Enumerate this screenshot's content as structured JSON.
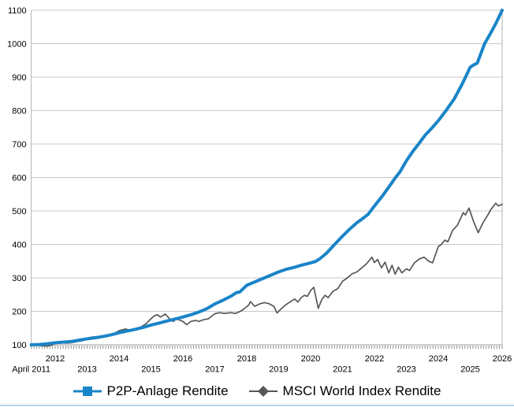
{
  "chart_data": {
    "type": "line",
    "title": "",
    "xlabel": "",
    "ylabel": "",
    "legend_position": "bottom",
    "grid": "horizontal-only",
    "background_color": "#ffffff",
    "grid_color": "#c9c9c9",
    "axis_line_color": "#b3b3b3",
    "baseline_color": "#9f9f9f",
    "tick_color": "#8f8f8f",
    "axis_text_color": "#000000",
    "bottom_edge_color": "#b9d3e8",
    "x_range": [
      2011.25,
      2026
    ],
    "y_axis": {
      "min": 100,
      "max": 1100,
      "step": 100,
      "tick_labels": [
        "100",
        "200",
        "300",
        "400",
        "500",
        "600",
        "700",
        "800",
        "900",
        "1000",
        "1100"
      ]
    },
    "x_axis": {
      "minor_ticks": "monthly",
      "ticks": [
        {
          "label": "April 2011",
          "x": 2011.25,
          "row": 2
        },
        {
          "label": "2012",
          "x": 2012,
          "row": 1
        },
        {
          "label": "2013",
          "x": 2013,
          "row": 2
        },
        {
          "label": "2014",
          "x": 2014,
          "row": 1
        },
        {
          "label": "2015",
          "x": 2015,
          "row": 2
        },
        {
          "label": "2016",
          "x": 2016,
          "row": 1
        },
        {
          "label": "2017",
          "x": 2017,
          "row": 2
        },
        {
          "label": "2018",
          "x": 2018,
          "row": 1
        },
        {
          "label": "2019",
          "x": 2019,
          "row": 2
        },
        {
          "label": "2020",
          "x": 2020,
          "row": 1
        },
        {
          "label": "2021",
          "x": 2021,
          "row": 2
        },
        {
          "label": "2022",
          "x": 2022,
          "row": 1
        },
        {
          "label": "2023",
          "x": 2023,
          "row": 2
        },
        {
          "label": "2024",
          "x": 2024,
          "row": 1
        },
        {
          "label": "2025",
          "x": 2025,
          "row": 2
        },
        {
          "label": "2026",
          "x": 2026,
          "row": 1
        }
      ]
    },
    "series": [
      {
        "name": "P2P-Anlage Rendite",
        "color": "#1a84c8",
        "line_width": 4,
        "marker": "square",
        "points": [
          [
            2011.25,
            100
          ],
          [
            2011.5,
            101
          ],
          [
            2011.75,
            103
          ],
          [
            2012.0,
            106
          ],
          [
            2012.25,
            108
          ],
          [
            2012.5,
            110
          ],
          [
            2012.75,
            114
          ],
          [
            2013.0,
            118
          ],
          [
            2013.25,
            121
          ],
          [
            2013.5,
            125
          ],
          [
            2013.75,
            130
          ],
          [
            2014.0,
            136
          ],
          [
            2014.25,
            141
          ],
          [
            2014.5,
            146
          ],
          [
            2014.75,
            152
          ],
          [
            2015.0,
            159
          ],
          [
            2015.25,
            165
          ],
          [
            2015.5,
            171
          ],
          [
            2015.75,
            177
          ],
          [
            2016.0,
            183
          ],
          [
            2016.25,
            190
          ],
          [
            2016.5,
            198
          ],
          [
            2016.75,
            208
          ],
          [
            2017.0,
            222
          ],
          [
            2017.25,
            233
          ],
          [
            2017.5,
            245
          ],
          [
            2017.68,
            256
          ],
          [
            2017.78,
            258
          ],
          [
            2018.0,
            278
          ],
          [
            2018.25,
            288
          ],
          [
            2018.5,
            298
          ],
          [
            2018.75,
            308
          ],
          [
            2019.0,
            318
          ],
          [
            2019.25,
            326
          ],
          [
            2019.5,
            332
          ],
          [
            2019.75,
            339
          ],
          [
            2020.0,
            345
          ],
          [
            2020.15,
            349
          ],
          [
            2020.3,
            358
          ],
          [
            2020.5,
            374
          ],
          [
            2020.75,
            400
          ],
          [
            2021.0,
            425
          ],
          [
            2021.25,
            448
          ],
          [
            2021.45,
            465
          ],
          [
            2021.6,
            475
          ],
          [
            2021.8,
            490
          ],
          [
            2022.0,
            515
          ],
          [
            2022.25,
            545
          ],
          [
            2022.5,
            578
          ],
          [
            2022.66,
            600
          ],
          [
            2022.8,
            617
          ],
          [
            2023.0,
            650
          ],
          [
            2023.2,
            678
          ],
          [
            2023.38,
            700
          ],
          [
            2023.6,
            728
          ],
          [
            2023.8,
            748
          ],
          [
            2024.0,
            770
          ],
          [
            2024.24,
            800
          ],
          [
            2024.5,
            835
          ],
          [
            2024.75,
            880
          ],
          [
            2025.0,
            930
          ],
          [
            2025.1,
            936
          ],
          [
            2025.22,
            942
          ],
          [
            2025.45,
            1000
          ],
          [
            2025.6,
            1025
          ],
          [
            2025.8,
            1060
          ],
          [
            2026.0,
            1100
          ]
        ]
      },
      {
        "name": "MSCI World Index Rendite",
        "color": "#575757",
        "line_width": 1.7,
        "marker": "diamond",
        "points": [
          [
            2011.25,
            100
          ],
          [
            2011.4,
            99
          ],
          [
            2011.58,
            97
          ],
          [
            2011.75,
            96
          ],
          [
            2011.9,
            99
          ],
          [
            2012.0,
            104
          ],
          [
            2012.15,
            107
          ],
          [
            2012.35,
            105
          ],
          [
            2012.5,
            106
          ],
          [
            2012.7,
            110
          ],
          [
            2012.85,
            112
          ],
          [
            2013.0,
            120
          ],
          [
            2013.2,
            124
          ],
          [
            2013.4,
            122
          ],
          [
            2013.6,
            126
          ],
          [
            2013.8,
            131
          ],
          [
            2014.0,
            142
          ],
          [
            2014.2,
            147
          ],
          [
            2014.35,
            144
          ],
          [
            2014.5,
            148
          ],
          [
            2014.7,
            154
          ],
          [
            2014.85,
            163
          ],
          [
            2015.0,
            178
          ],
          [
            2015.1,
            186
          ],
          [
            2015.2,
            190
          ],
          [
            2015.3,
            183
          ],
          [
            2015.45,
            192
          ],
          [
            2015.6,
            176
          ],
          [
            2015.7,
            170
          ],
          [
            2015.8,
            178
          ],
          [
            2015.9,
            174
          ],
          [
            2016.0,
            170
          ],
          [
            2016.12,
            160
          ],
          [
            2016.25,
            170
          ],
          [
            2016.4,
            173
          ],
          [
            2016.5,
            170
          ],
          [
            2016.65,
            175
          ],
          [
            2016.8,
            178
          ],
          [
            2017.0,
            193
          ],
          [
            2017.15,
            196
          ],
          [
            2017.3,
            194
          ],
          [
            2017.5,
            196
          ],
          [
            2017.65,
            194
          ],
          [
            2017.8,
            200
          ],
          [
            2017.9,
            206
          ],
          [
            2018.05,
            218
          ],
          [
            2018.12,
            229
          ],
          [
            2018.25,
            215
          ],
          [
            2018.4,
            222
          ],
          [
            2018.55,
            226
          ],
          [
            2018.7,
            223
          ],
          [
            2018.85,
            215
          ],
          [
            2018.95,
            195
          ],
          [
            2019.05,
            205
          ],
          [
            2019.2,
            218
          ],
          [
            2019.35,
            228
          ],
          [
            2019.5,
            237
          ],
          [
            2019.6,
            228
          ],
          [
            2019.7,
            240
          ],
          [
            2019.8,
            248
          ],
          [
            2019.9,
            245
          ],
          [
            2020.0,
            262
          ],
          [
            2020.1,
            272
          ],
          [
            2020.17,
            240
          ],
          [
            2020.24,
            209
          ],
          [
            2020.35,
            235
          ],
          [
            2020.45,
            248
          ],
          [
            2020.55,
            241
          ],
          [
            2020.7,
            260
          ],
          [
            2020.85,
            268
          ],
          [
            2021.0,
            290
          ],
          [
            2021.15,
            300
          ],
          [
            2021.3,
            312
          ],
          [
            2021.45,
            318
          ],
          [
            2021.6,
            330
          ],
          [
            2021.75,
            342
          ],
          [
            2021.92,
            362
          ],
          [
            2022.0,
            346
          ],
          [
            2022.1,
            355
          ],
          [
            2022.22,
            330
          ],
          [
            2022.33,
            347
          ],
          [
            2022.45,
            315
          ],
          [
            2022.55,
            338
          ],
          [
            2022.65,
            311
          ],
          [
            2022.75,
            332
          ],
          [
            2022.86,
            315
          ],
          [
            2023.0,
            327
          ],
          [
            2023.1,
            322
          ],
          [
            2023.25,
            345
          ],
          [
            2023.4,
            356
          ],
          [
            2023.55,
            362
          ],
          [
            2023.7,
            350
          ],
          [
            2023.82,
            345
          ],
          [
            2024.0,
            394
          ],
          [
            2024.1,
            400
          ],
          [
            2024.2,
            413
          ],
          [
            2024.3,
            408
          ],
          [
            2024.45,
            442
          ],
          [
            2024.6,
            458
          ],
          [
            2024.7,
            478
          ],
          [
            2024.78,
            495
          ],
          [
            2024.85,
            488
          ],
          [
            2024.96,
            509
          ],
          [
            2025.1,
            470
          ],
          [
            2025.25,
            435
          ],
          [
            2025.4,
            465
          ],
          [
            2025.55,
            488
          ],
          [
            2025.65,
            505
          ],
          [
            2025.8,
            523
          ],
          [
            2025.88,
            515
          ],
          [
            2026.0,
            520
          ]
        ]
      }
    ]
  }
}
